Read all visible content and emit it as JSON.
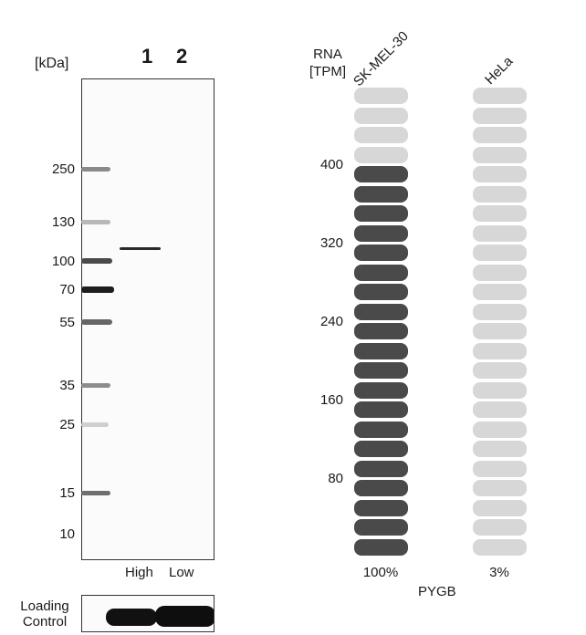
{
  "blot": {
    "unit_label": "[kDa]",
    "lanes": [
      "1",
      "2"
    ],
    "lane_labels": [
      "High",
      "Low"
    ],
    "markers": [
      "250",
      "130",
      "100",
      "70",
      "55",
      "35",
      "25",
      "15",
      "10"
    ],
    "loading_control_label": "Loading\nControl"
  },
  "rna": {
    "title_line1": "RNA",
    "title_line2": "[TPM]",
    "cell_lines": [
      "SK-MEL-30",
      "HeLa"
    ],
    "ticks": [
      "400",
      "320",
      "240",
      "160",
      "80"
    ],
    "percentages": [
      "100%",
      "3%"
    ],
    "gene": "PYGB",
    "filled_fraction": [
      0.84,
      0.0
    ],
    "colors": {
      "filled": "#4a4a4a",
      "empty": "#d7d7d7"
    }
  }
}
